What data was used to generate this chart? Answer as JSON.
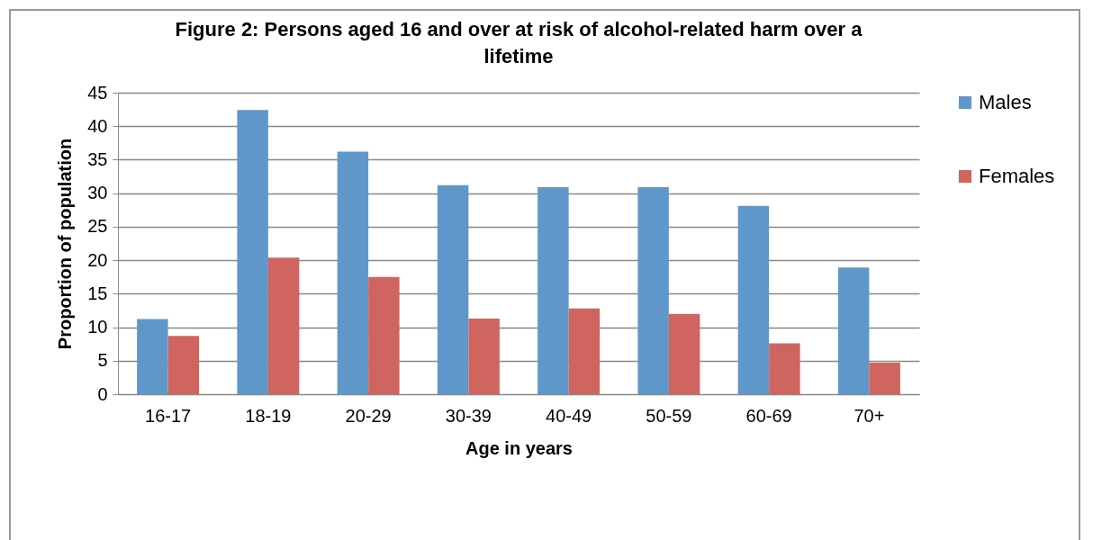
{
  "chart_data": {
    "type": "bar",
    "title": "Figure 2: Persons aged 16 and over at risk of alcohol-related harm over a lifetime",
    "xlabel": "Age in years",
    "ylabel": "Proportion of population",
    "categories": [
      "16-17",
      "18-19",
      "20-29",
      "30-39",
      "40-49",
      "50-59",
      "60-69",
      "70+"
    ],
    "series": [
      {
        "name": "Males",
        "color": "#6097cb",
        "values": [
          11.2,
          42.4,
          36.2,
          31.2,
          30.9,
          30.9,
          28.1,
          18.9
        ]
      },
      {
        "name": "Females",
        "color": "#d0645f",
        "values": [
          8.7,
          20.4,
          17.5,
          11.3,
          12.8,
          12.0,
          7.6,
          4.7
        ]
      }
    ],
    "ylim": [
      0,
      45
    ],
    "yticks": [
      0,
      5,
      10,
      15,
      20,
      25,
      30,
      35,
      40,
      45
    ],
    "grid": "y",
    "legend": "right"
  }
}
